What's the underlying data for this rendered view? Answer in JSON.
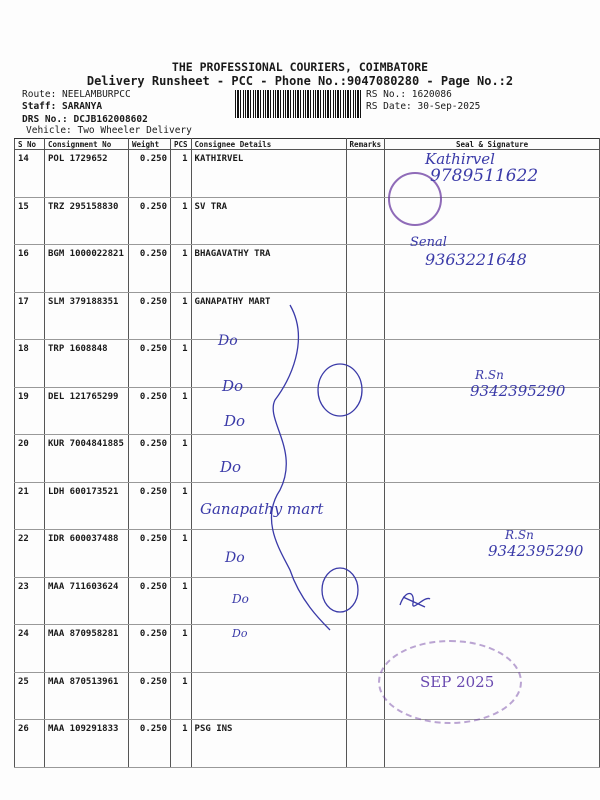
{
  "header": {
    "company": "THE PROFESSIONAL COURIERS, COIMBATORE",
    "subtitle": "Delivery Runsheet - PCC - Phone No.:9047080280 - Page No.:2",
    "route": "Route: NEELAMBURPCC",
    "staff": "Staff: SARANYA",
    "drs": "DRS No.: DCJB162008602",
    "vehicle": "Vehicle: Two Wheeler Delivery",
    "rs_no": "RS No.: 1620086",
    "rs_date": "RS Date: 30-Sep-2025"
  },
  "table": {
    "columns": [
      "S No",
      "Consignment No",
      "Weight",
      "PCS",
      "Consignee Details",
      "Remarks",
      "Seal & Signature"
    ],
    "rows": [
      {
        "sno": "14",
        "consignment": "POL 1729652",
        "weight": "0.250",
        "pcs": "1",
        "consignee": "KATHIRVEL"
      },
      {
        "sno": "15",
        "consignment": "TRZ 295158830",
        "weight": "0.250",
        "pcs": "1",
        "consignee": "SV TRA"
      },
      {
        "sno": "16",
        "consignment": "BGM 1000022821",
        "weight": "0.250",
        "pcs": "1",
        "consignee": "BHAGAVATHY TRA"
      },
      {
        "sno": "17",
        "consignment": "SLM 379188351",
        "weight": "0.250",
        "pcs": "1",
        "consignee": "GANAPATHY MART"
      },
      {
        "sno": "18",
        "consignment": "TRP 1608848",
        "weight": "0.250",
        "pcs": "1",
        "consignee": ""
      },
      {
        "sno": "19",
        "consignment": "DEL 121765299",
        "weight": "0.250",
        "pcs": "1",
        "consignee": ""
      },
      {
        "sno": "20",
        "consignment": "KUR 7004841885",
        "weight": "0.250",
        "pcs": "1",
        "consignee": ""
      },
      {
        "sno": "21",
        "consignment": "LDH 600173521",
        "weight": "0.250",
        "pcs": "1",
        "consignee": ""
      },
      {
        "sno": "22",
        "consignment": "IDR 600037488",
        "weight": "0.250",
        "pcs": "1",
        "consignee": ""
      },
      {
        "sno": "23",
        "consignment": "MAA 711603624",
        "weight": "0.250",
        "pcs": "1",
        "consignee": ""
      },
      {
        "sno": "24",
        "consignment": "MAA 870958281",
        "weight": "0.250",
        "pcs": "1",
        "consignee": ""
      },
      {
        "sno": "25",
        "consignment": "MAA 870513961",
        "weight": "0.250",
        "pcs": "1",
        "consignee": ""
      },
      {
        "sno": "26",
        "consignment": "MAA 109291833",
        "weight": "0.250",
        "pcs": "1",
        "consignee": "PSG INS"
      }
    ]
  },
  "handwriting": {
    "sig1": "Kathirvel",
    "phone1": "9789511622",
    "sig2": "Senal",
    "phone2": "9363221648",
    "do1": "Do",
    "do2": "Do",
    "do3": "Do",
    "do4": "Do",
    "ganapathy": "Ganapathy mart",
    "do5": "Do",
    "do6": "Do",
    "do7": "Do",
    "sig3": "R.Sn",
    "phone3": "9342395290",
    "sig4": "R.Sn",
    "phone4": "9342395290",
    "stamp_date": "SEP 2025"
  },
  "colors": {
    "ink": "#3a3aa8",
    "stamp": "#6a3aa0"
  }
}
